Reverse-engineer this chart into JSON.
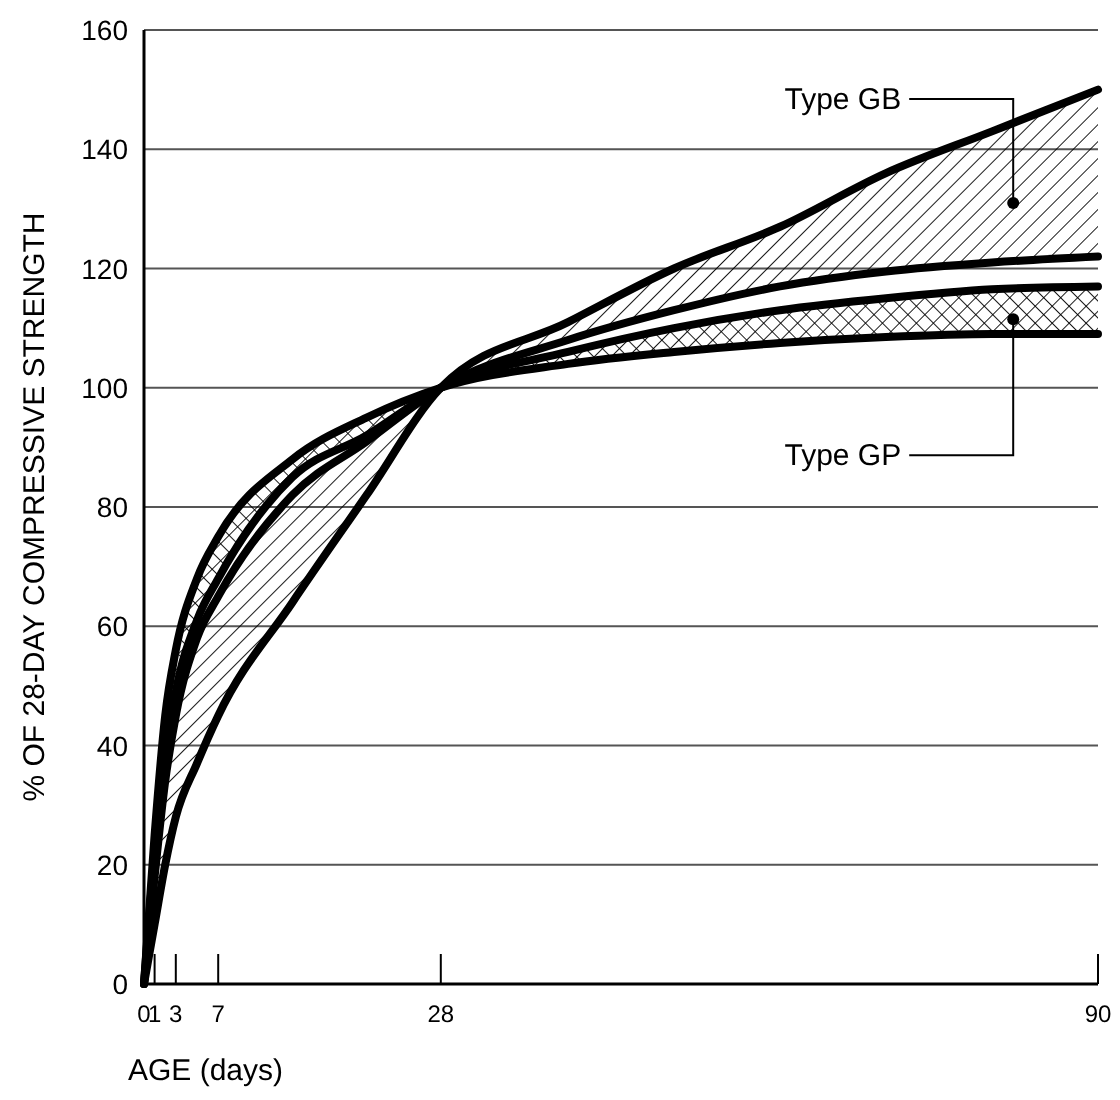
{
  "chart_data": {
    "type": "line",
    "xlabel": "AGE (days)",
    "ylabel": "% OF 28-DAY COMPRESSIVE STRENGTH",
    "xlim": [
      0,
      90
    ],
    "xticks": [
      0,
      1,
      3,
      7,
      28,
      90
    ],
    "ylim": [
      0,
      160
    ],
    "yticks": [
      0,
      20,
      40,
      60,
      80,
      100,
      120,
      140,
      160
    ],
    "grid": "y",
    "x": [
      0,
      1,
      2,
      3,
      5,
      7,
      14,
      21,
      28,
      40,
      50,
      60,
      70,
      80,
      90
    ],
    "series": [
      {
        "color": "#000000",
        "values": [
          0,
          25,
          45,
          56,
          68,
          75,
          88,
          95,
          100,
          104,
          106,
          107.5,
          108.5,
          109,
          109
        ],
        "lower": [
          0,
          25,
          45,
          56,
          68,
          75,
          88,
          95,
          100,
          104,
          106,
          107.5,
          108.5,
          109,
          109
        ],
        "upper": [
          0,
          22,
          38,
          49,
          61,
          68,
          85,
          92,
          100,
          106,
          110,
          113,
          115,
          116.5,
          117
        ]
      },
      {
        "color": "#000000",
        "values": [
          0,
          22,
          38,
          49,
          61,
          68,
          85,
          92,
          100,
          106,
          110,
          113,
          115,
          116.5,
          117
        ]
      },
      {
        "color": "#000000",
        "values": [
          0,
          18,
          34,
          45,
          58,
          65,
          82,
          91,
          100,
          108,
          113,
          117,
          119.5,
          121,
          122
        ],
        "lower": [
          0,
          18,
          34,
          45,
          58,
          65,
          82,
          91,
          100,
          108,
          113,
          117,
          119.5,
          121,
          122
        ],
        "upper": [
          0,
          10,
          20,
          28,
          37,
          45,
          64,
          82,
          100,
          111,
          120,
          127,
          136,
          143,
          150
        ]
      },
      {
        "color": "#000000",
        "values": [
          0,
          10,
          20,
          28,
          37,
          45,
          64,
          82,
          100,
          111,
          120,
          127,
          136,
          143,
          150
        ]
      }
    ],
    "annotations": [
      {
        "text": "Type GB",
        "x": 82,
        "y": 131
      },
      {
        "text": "Type GP",
        "x": 82,
        "y": 111.5
      }
    ]
  }
}
